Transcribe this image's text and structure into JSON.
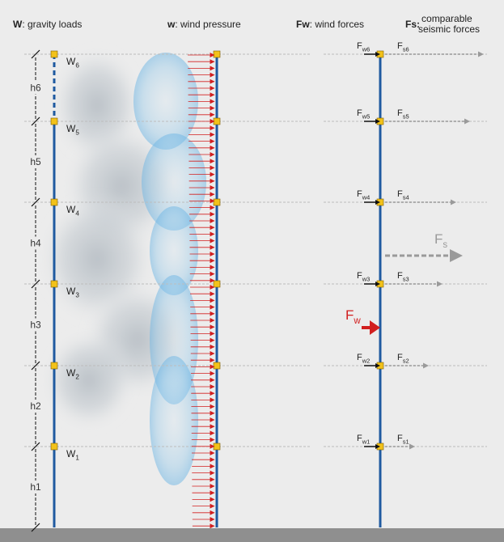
{
  "headers": {
    "gravity": {
      "symbol": "W",
      "text": ": gravity loads"
    },
    "wind_pressure": {
      "symbol": "w",
      "text": ": wind pressure"
    },
    "wind_forces": {
      "symbol": "Fw",
      "text": ": wind forces"
    },
    "seismic": {
      "symbol": "Fs",
      "text": ":",
      "line1": "comparable",
      "line2": "seismic forces"
    }
  },
  "floors": [
    {
      "W": "W",
      "W_sub": "1",
      "h": "h1",
      "Fw": "F",
      "Fw_sub": "w1",
      "Fs": "F",
      "Fs_sub": "s1"
    },
    {
      "W": "W",
      "W_sub": "2",
      "h": "h2",
      "Fw": "F",
      "Fw_sub": "w2",
      "Fs": "F",
      "Fs_sub": "s2"
    },
    {
      "W": "W",
      "W_sub": "3",
      "h": "h3",
      "Fw": "F",
      "Fw_sub": "w3",
      "Fs": "F",
      "Fs_sub": "s3"
    },
    {
      "W": "W",
      "W_sub": "4",
      "h": "h4",
      "Fw": "F",
      "Fw_sub": "w4",
      "Fs": "F",
      "Fs_sub": "s4"
    },
    {
      "W": "W",
      "W_sub": "5",
      "h": "h5",
      "Fw": "F",
      "Fw_sub": "w5",
      "Fs": "F",
      "Fs_sub": "s5"
    },
    {
      "W": "W",
      "W_sub": "6",
      "h": "h6",
      "Fw": "F",
      "Fw_sub": "w6",
      "Fs": "F",
      "Fs_sub": "s6"
    }
  ],
  "resultants": {
    "Fw": {
      "label": "F",
      "sub": "w"
    },
    "Fs": {
      "label": "F",
      "sub": "s"
    }
  },
  "colors": {
    "column": "#1f5aa0",
    "node": "#f2c21a",
    "wind_arrow": "#d11f1f",
    "seismic_arrow": "#9a9a9a",
    "level_line": "#bdbdbd",
    "cloud": "#8fc7ea"
  }
}
